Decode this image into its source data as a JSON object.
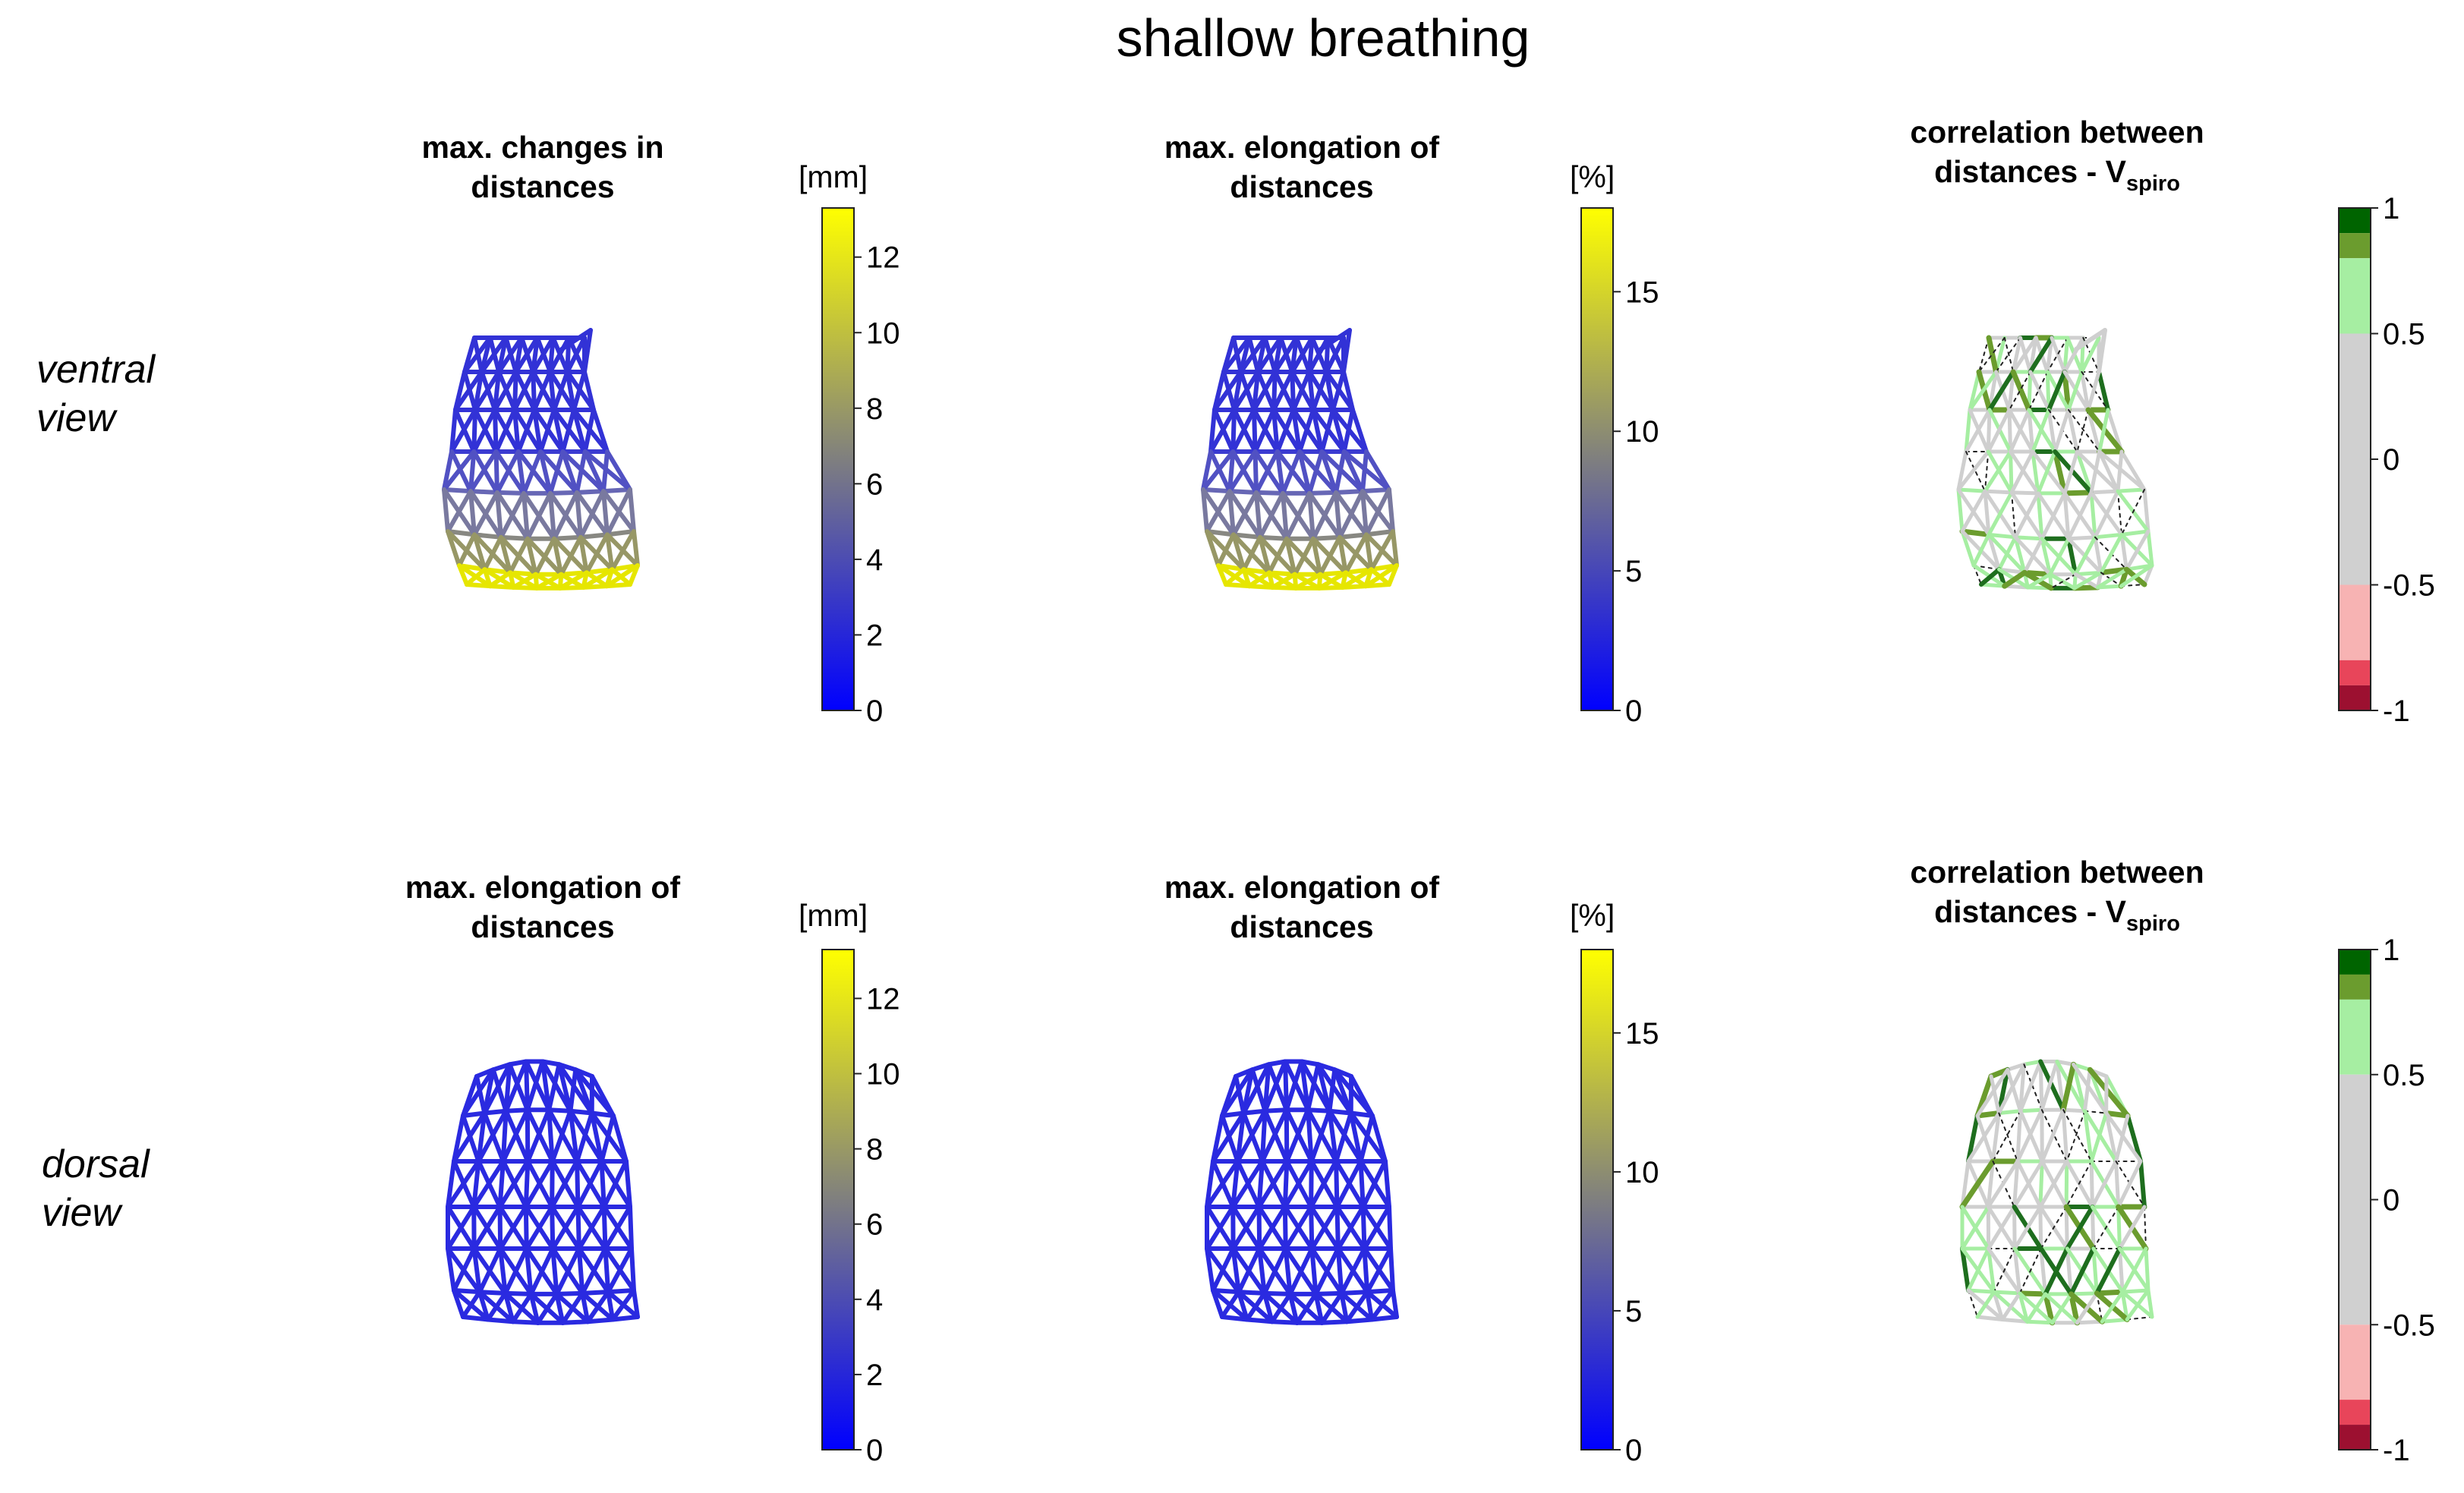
{
  "title": "shallow breathing",
  "rows": [
    {
      "label_1": "ventral",
      "label_2": "view"
    },
    {
      "label_1": "dorsal",
      "label_2": "view"
    }
  ],
  "panels": {
    "ventral_distances": {
      "title_1": "max. changes in",
      "title_2": "distances"
    },
    "ventral_elongation": {
      "title_1": "max. elongation of",
      "title_2": "distances"
    },
    "ventral_correlation": {
      "title_1": "correlation between",
      "title_2": "distances - V",
      "title_sub": "spiro"
    },
    "dorsal_distances": {
      "title_1": "max. elongation of",
      "title_2": "distances"
    },
    "dorsal_elongation": {
      "title_1": "max. elongation of",
      "title_2": "distances"
    },
    "dorsal_correlation": {
      "title_1": "correlation between",
      "title_2": "distances - V",
      "title_sub": "spiro"
    }
  },
  "colorbars": {
    "mm": {
      "unit": "[mm]",
      "min": 0,
      "max": 13.3,
      "ticks": [
        "0",
        "2",
        "4",
        "6",
        "8",
        "10",
        "12"
      ],
      "tick_values": [
        0,
        2,
        4,
        6,
        8,
        10,
        12
      ],
      "gradient": [
        "#0000ff",
        "#7f7f7f",
        "#ffff00"
      ]
    },
    "percent": {
      "unit": "[%]",
      "min": 0,
      "max": 18,
      "ticks": [
        "0",
        "5",
        "10",
        "15"
      ],
      "tick_values": [
        0,
        5,
        10,
        15
      ],
      "gradient": [
        "#0000ff",
        "#7f7f7f",
        "#ffff00"
      ]
    },
    "correlation": {
      "min": -1,
      "max": 1,
      "ticks": [
        "1",
        "0.5",
        "0",
        "-0.5",
        "-1"
      ],
      "tick_values": [
        1,
        0.5,
        0,
        -0.5,
        -1
      ],
      "segments": [
        {
          "from": 0.9,
          "to": 1.0,
          "color": "#006400"
        },
        {
          "from": 0.8,
          "to": 0.9,
          "color": "#6b9c2e"
        },
        {
          "from": 0.5,
          "to": 0.8,
          "color": "#a6eea2"
        },
        {
          "from": -0.5,
          "to": 0.5,
          "color": "#d0d0d0"
        },
        {
          "from": -0.8,
          "to": -0.5,
          "color": "#f7b3b3"
        },
        {
          "from": -0.9,
          "to": -0.8,
          "color": "#e8455a"
        },
        {
          "from": -1.0,
          "to": -0.9,
          "color": "#9c1030"
        }
      ]
    }
  },
  "colors": {
    "mesh_blue": "#3232d6",
    "mesh_yellow": "#e6e600",
    "corr_gray": "#cfcfcf",
    "corr_light_green": "#a6eea2",
    "corr_olive": "#6b9c2e",
    "corr_dark_green": "#1e6e1e"
  }
}
